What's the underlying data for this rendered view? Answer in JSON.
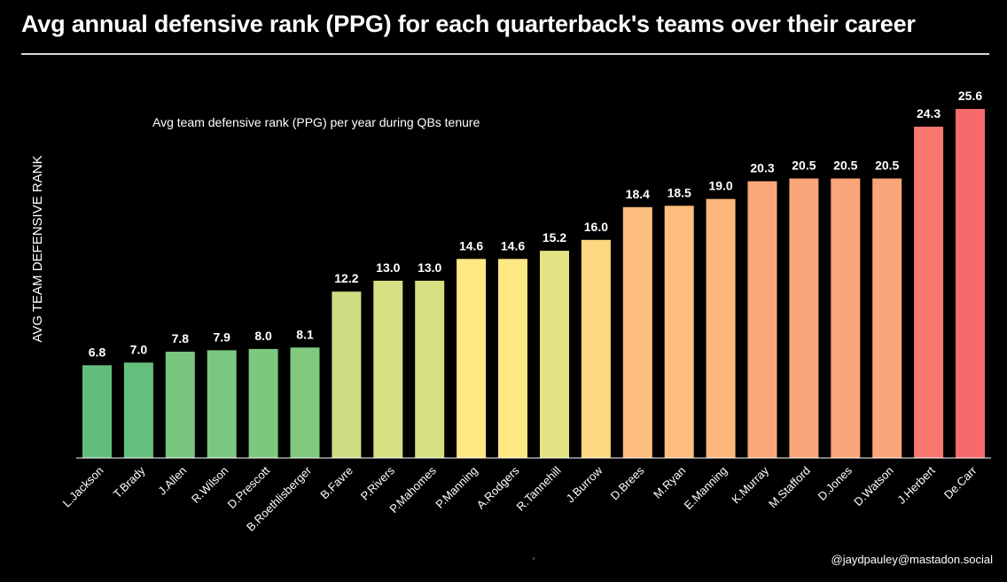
{
  "chart_data": {
    "type": "bar",
    "title": "Avg annual defensive rank (PPG) for each quarterback's teams over their career",
    "annotation": "Avg team defensive rank (PPG) per year during QBs tenure",
    "ylabel": "AVG TEAM DEFENSIVE RANK",
    "xlabel": "",
    "ylim": [
      0,
      28
    ],
    "grid": false,
    "categories": [
      "L.Jackson",
      "T.Brady",
      "J.Allen",
      "R.Wilson",
      "D.Prescott",
      "B.Roethlisberger",
      "B.Favre",
      "P.Rivers",
      "P.Mahomes",
      "P.Manning",
      "A.Rodgers",
      "R.Tannehill",
      "J.Burrow",
      "D.Brees",
      "M.Ryan",
      "E.Manning",
      "K.Murray",
      "M.Stafford",
      "D.Jones",
      "D.Watson",
      "J.Herbert",
      "De.Carr"
    ],
    "values": [
      6.8,
      7.0,
      7.8,
      7.9,
      8.0,
      8.1,
      12.2,
      13.0,
      13.0,
      14.6,
      14.6,
      15.2,
      16.0,
      18.4,
      18.5,
      19.0,
      20.3,
      20.5,
      20.5,
      20.5,
      24.3,
      25.6
    ],
    "value_labels": [
      "6.8",
      "7.0",
      "7.8",
      "7.9",
      "8.0",
      "8.1",
      "12.2",
      "13.0",
      "13.0",
      "14.6",
      "14.6",
      "15.2",
      "16.0",
      "18.4",
      "18.5",
      "19.0",
      "20.3",
      "20.5",
      "20.5",
      "20.5",
      "24.3",
      "25.6"
    ],
    "bar_colors": [
      "#63be7b",
      "#65bf7c",
      "#79c67f",
      "#7bc77f",
      "#7dc87f",
      "#80c97f",
      "#cddd82",
      "#d6df82",
      "#d6df82",
      "#fde883",
      "#fde883",
      "#e4e383",
      "#fed880",
      "#fdbe7d",
      "#fdbd7c",
      "#fcb67b",
      "#fba77a",
      "#fba57a",
      "#fba57a",
      "#fba57a",
      "#f8786f",
      "#f8696b"
    ]
  },
  "credit": "@jaydpauley@mastadon.social",
  "footer_mark": "*"
}
